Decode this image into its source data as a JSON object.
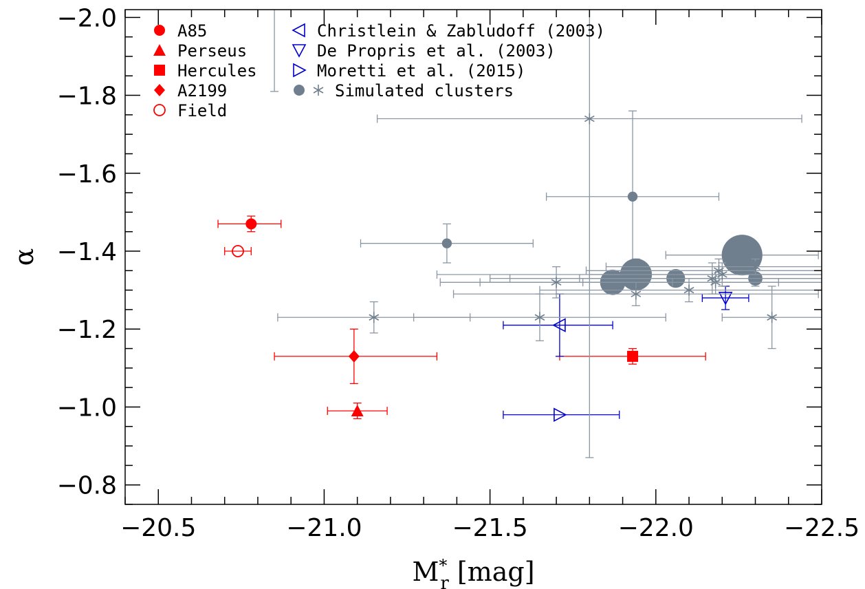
{
  "chart_data": {
    "type": "scatter",
    "xlabel": "M*r [mag]",
    "xlabel_parts": {
      "base": "M",
      "sup": "*",
      "sub": "r",
      "unit": "[mag]"
    },
    "ylabel": "α",
    "xlim": [
      -20.4,
      -22.5
    ],
    "ylim": [
      -0.75,
      -2.02
    ],
    "x_inverted": true,
    "y_inverted": true,
    "xticks": [
      -20.5,
      -21.0,
      -21.5,
      -22.0,
      -22.5
    ],
    "xtick_labels": [
      "−20.5",
      "−21.0",
      "−21.5",
      "−22.0",
      "−22.5"
    ],
    "yticks": [
      -0.8,
      -1.0,
      -1.2,
      -1.4,
      -1.6,
      -1.8,
      -2.0
    ],
    "ytick_labels": [
      "−0.8",
      "−1.0",
      "−1.2",
      "−1.4",
      "−1.6",
      "−1.8",
      "−2.0"
    ],
    "grid": false,
    "legend_position": "top-left",
    "colors": {
      "observed": "#ff0000",
      "literature": "#0000cc",
      "simulated": "#707f8e",
      "simulated_errorbar": "#8a96a3"
    },
    "legend": [
      {
        "label": "A85",
        "marker": "circle-filled",
        "color": "#ff0000"
      },
      {
        "label": "Perseus",
        "marker": "triangle-up-filled",
        "color": "#ff0000"
      },
      {
        "label": "Hercules",
        "marker": "square-filled",
        "color": "#ff0000"
      },
      {
        "label": "A2199",
        "marker": "diamond-filled",
        "color": "#ff0000"
      },
      {
        "label": "Field",
        "marker": "circle-open",
        "color": "#ff0000"
      },
      {
        "label": "Christlein & Zabludoff (2003)",
        "marker": "triangle-left-open",
        "color": "#0000cc"
      },
      {
        "label": "De Propris et al. (2003)",
        "marker": "triangle-down-open",
        "color": "#0000cc"
      },
      {
        "label": "Moretti et al. (2015)",
        "marker": "triangle-right-open",
        "color": "#0000cc"
      },
      {
        "label": "Simulated clusters",
        "marker": "circle-and-asterisk",
        "color": "#707f8e"
      }
    ],
    "series": [
      {
        "name": "A85",
        "marker": "circle-filled",
        "color": "#ff0000",
        "points": [
          {
            "x": -20.78,
            "y": -1.47,
            "xerr": [
              0.1,
              0.09
            ],
            "yerr": [
              0.02,
              0.02
            ]
          }
        ]
      },
      {
        "name": "Perseus",
        "marker": "triangle-up-filled",
        "color": "#ff0000",
        "points": [
          {
            "x": -21.1,
            "y": -0.99,
            "xerr": [
              0.09,
              0.09
            ],
            "yerr": [
              0.02,
              0.02
            ]
          }
        ]
      },
      {
        "name": "Hercules",
        "marker": "square-filled",
        "color": "#ff0000",
        "points": [
          {
            "x": -21.93,
            "y": -1.13,
            "xerr": [
              0.22,
              0.22
            ],
            "yerr": [
              0.02,
              0.02
            ]
          }
        ]
      },
      {
        "name": "A2199",
        "marker": "diamond-filled",
        "color": "#ff0000",
        "points": [
          {
            "x": -21.09,
            "y": -1.13,
            "xerr": [
              0.24,
              0.25
            ],
            "yerr": [
              0.07,
              0.07
            ]
          }
        ]
      },
      {
        "name": "Field",
        "marker": "circle-open",
        "color": "#ff0000",
        "points": [
          {
            "x": -20.74,
            "y": -1.4,
            "xerr": [
              0.04,
              0.04
            ],
            "yerr": [
              0,
              0
            ]
          }
        ]
      },
      {
        "name": "Christlein & Zabludoff (2003)",
        "marker": "triangle-left-open",
        "color": "#0000cc",
        "points": [
          {
            "x": -21.71,
            "y": -1.21,
            "xerr": [
              0.17,
              0.16
            ],
            "yerr": [
              0.08,
              0.08
            ]
          }
        ]
      },
      {
        "name": "De Propris et al. (2003)",
        "marker": "triangle-down-open",
        "color": "#0000cc",
        "points": [
          {
            "x": -22.21,
            "y": -1.28,
            "xerr": [
              0.07,
              0.07
            ],
            "yerr": [
              0.03,
              0.03
            ]
          }
        ]
      },
      {
        "name": "Moretti et al. (2015)",
        "marker": "triangle-right-open",
        "color": "#0000cc",
        "points": [
          {
            "x": -21.71,
            "y": -0.98,
            "xerr": [
              0.17,
              0.18
            ],
            "yerr": [
              0,
              0
            ]
          }
        ]
      },
      {
        "name": "Simulated clusters",
        "marker": "circle-filled",
        "color": "#707f8e",
        "points": [
          {
            "x": -21.37,
            "y": -1.42,
            "size": 0.2,
            "xerr": [
              0.26,
              0.26
            ],
            "yerr": [
              0.05,
              0.05
            ]
          },
          {
            "x": -21.93,
            "y": -1.54,
            "size": 0.2,
            "xerr": [
              0.26,
              0.26
            ],
            "yerr": [
              0.22,
              0.22
            ]
          },
          {
            "x": -21.87,
            "y": -1.32,
            "size": 0.9,
            "xerr": [
              0.4,
              0.5
            ],
            "yerr": [
              0.02,
              0.02
            ]
          },
          {
            "x": -21.94,
            "y": -1.34,
            "size": 1.2,
            "xerr": [
              0.6,
              0.6
            ],
            "yerr": [
              0.04,
              0.04
            ]
          },
          {
            "x": -22.06,
            "y": -1.33,
            "size": 0.6,
            "xerr": [
              0.5,
              0.5
            ],
            "yerr": [
              0.02,
              0.02
            ]
          },
          {
            "x": -22.26,
            "y": -1.39,
            "size": 1.6,
            "xerr": [
              0.23,
              0.23
            ],
            "yerr": [
              0,
              0
            ]
          },
          {
            "x": -22.3,
            "y": -1.33,
            "size": 0.4,
            "xerr": [
              0.8,
              0.5
            ],
            "yerr": [
              0.02,
              0.02
            ]
          }
        ]
      },
      {
        "name": "Simulated clusters",
        "marker": "asterisk",
        "color": "#707f8e",
        "points": [
          {
            "x": -21.8,
            "y": -1.74,
            "xerr": [
              0.64,
              0.64
            ],
            "yerr": [
              0.87,
              0.87
            ]
          },
          {
            "x": -20.85,
            "y": -2.1,
            "xerr": [
              0,
              0
            ],
            "yerr": [
              0.29,
              0.29
            ]
          },
          {
            "x": -21.15,
            "y": -1.23,
            "xerr": [
              0.29,
              0.29
            ],
            "yerr": [
              0.04,
              0.04
            ]
          },
          {
            "x": -21.65,
            "y": -1.23,
            "xerr": [
              0.38,
              0.38
            ],
            "yerr": [
              0.06,
              0.06
            ]
          },
          {
            "x": -21.7,
            "y": -1.32,
            "xerr": [
              0.35,
              0.35
            ],
            "yerr": [
              0.04,
              0.04
            ]
          },
          {
            "x": -21.94,
            "y": -1.29,
            "xerr": [
              0.55,
              0.55
            ],
            "yerr": [
              0.03,
              0.03
            ]
          },
          {
            "x": -22.1,
            "y": -1.3,
            "xerr": [
              0.45,
              0.45
            ],
            "yerr": [
              0.03,
              0.03
            ]
          },
          {
            "x": -22.17,
            "y": -1.33,
            "xerr": [
              0.4,
              0.4
            ],
            "yerr": [
              0.04,
              0.04
            ]
          },
          {
            "x": -22.18,
            "y": -1.32,
            "xerr": [
              0.4,
              0.4
            ],
            "yerr": [
              0.03,
              0.03
            ]
          },
          {
            "x": -22.19,
            "y": -1.35,
            "xerr": [
              0.4,
              0.4
            ],
            "yerr": [
              0.03,
              0.03
            ]
          },
          {
            "x": -22.2,
            "y": -1.34,
            "xerr": [
              0.4,
              0.4
            ],
            "yerr": [
              0.03,
              0.03
            ]
          },
          {
            "x": -22.3,
            "y": -1.36,
            "xerr": [
              0.45,
              0.45
            ],
            "yerr": [
              0.02,
              0.02
            ]
          },
          {
            "x": -22.35,
            "y": -1.23,
            "xerr": [
              0.15,
              0.15
            ],
            "yerr": [
              0.08,
              0.08
            ]
          }
        ]
      }
    ]
  }
}
